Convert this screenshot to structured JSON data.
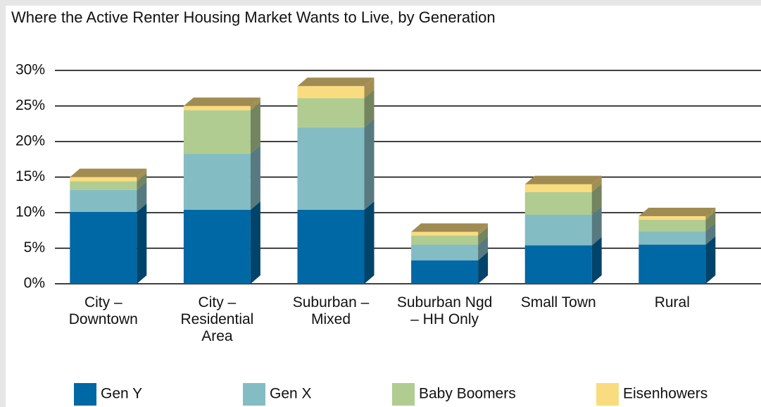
{
  "chart_data": {
    "type": "stacked-bar-3d",
    "title": "Where the Active Renter Housing Market Wants to Live, by Generation",
    "categories": [
      "City – Downtown",
      "City – Residential Area",
      "Suburban – Mixed",
      "Suburban Ngd – HH Only",
      "Small Town",
      "Rural"
    ],
    "series": [
      {
        "name": "Gen Y",
        "color": "#0068a4",
        "values": [
          10.1,
          10.4,
          10.4,
          3.3,
          5.4,
          5.5
        ]
      },
      {
        "name": "Gen X",
        "color": "#84bcc4",
        "values": [
          3.1,
          7.9,
          11.6,
          2.2,
          4.3,
          1.9
        ]
      },
      {
        "name": "Baby Boomers",
        "color": "#b0cc90",
        "values": [
          1.2,
          6.1,
          4.1,
          1.3,
          3.2,
          1.6
        ]
      },
      {
        "name": "Eisenhowers",
        "color": "#fadc80",
        "values": [
          0.6,
          0.6,
          1.7,
          0.5,
          1.1,
          0.5
        ]
      }
    ],
    "ylim": [
      0,
      30
    ],
    "yticks": [
      {
        "value": 0,
        "label": "0%"
      },
      {
        "value": 5,
        "label": "5%"
      },
      {
        "value": 10,
        "label": "10%"
      },
      {
        "value": 15,
        "label": "15%"
      },
      {
        "value": 20,
        "label": "20%"
      },
      {
        "value": 25,
        "label": "25%"
      },
      {
        "value": 30,
        "label": "30%"
      }
    ],
    "grid": true,
    "legend": "bottom"
  }
}
